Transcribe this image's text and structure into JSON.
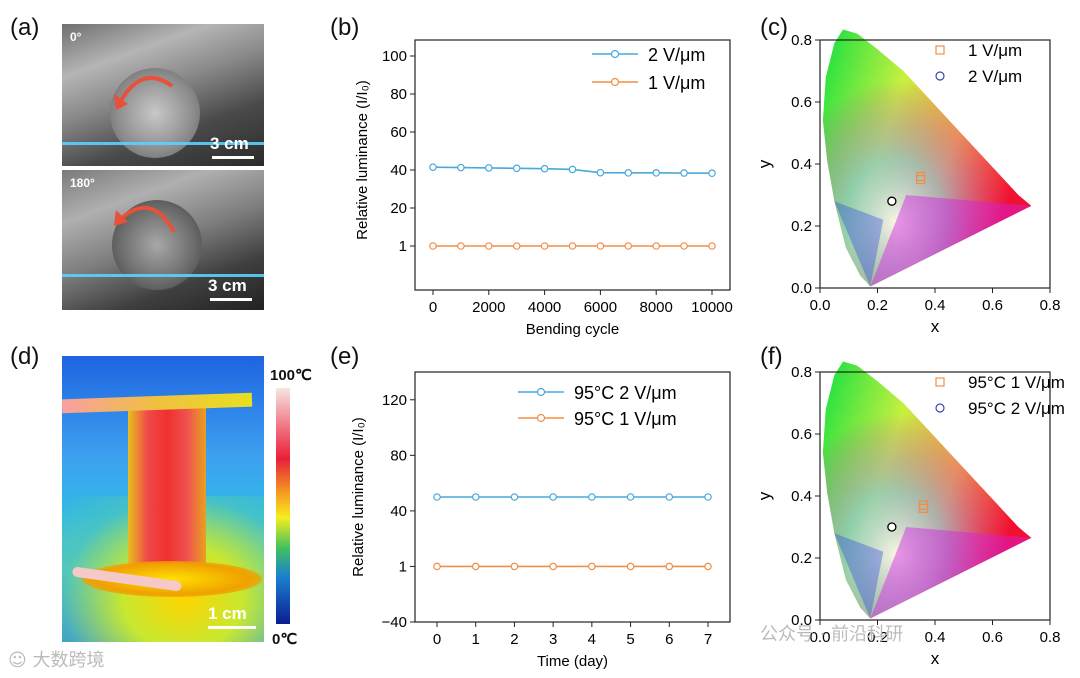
{
  "panels": {
    "a": {
      "label": "(a)",
      "photo1_angle": "0°",
      "photo2_angle": "180°",
      "scale": "3 cm"
    },
    "b": {
      "label": "(b)"
    },
    "c": {
      "label": "(c)"
    },
    "d": {
      "label": "(d)",
      "scale": "1 cm",
      "cbar_max": "100℃",
      "cbar_min": "0℃"
    },
    "e": {
      "label": "(e)"
    },
    "f": {
      "label": "(f)"
    }
  },
  "colors": {
    "blue": "#4aa8dc",
    "orange": "#ef8f45",
    "cie_blue_marker": "#3a43b8",
    "cie_orange_marker": "#ef8f45"
  },
  "chart_data": [
    {
      "id": "b",
      "type": "line",
      "xlabel": "Bending cycle",
      "ylabel": "Relative luminance (I/I₀)",
      "x": [
        0,
        1000,
        2000,
        3000,
        4000,
        5000,
        6000,
        7000,
        8000,
        9000,
        10000
      ],
      "xticks": [
        "0",
        "2000",
        "4000",
        "6000",
        "8000",
        "10000"
      ],
      "yticks": [
        "1",
        "20",
        "40",
        "60",
        "80",
        "100"
      ],
      "series": [
        {
          "name": "2 V/μm",
          "color": "#4aa8dc",
          "values": [
            41.5,
            41.3,
            41.1,
            40.9,
            40.7,
            40.3,
            38.6,
            38.5,
            38.5,
            38.4,
            38.3
          ]
        },
        {
          "name": "1 V/μm",
          "color": "#ef8f45",
          "values": [
            1,
            1,
            1,
            1,
            1,
            1,
            1,
            1,
            1,
            1,
            1
          ]
        }
      ]
    },
    {
      "id": "c",
      "type": "scatter",
      "xlabel": "x",
      "ylabel": "y",
      "xticks": [
        "0.0",
        "0.2",
        "0.4",
        "0.6",
        "0.8"
      ],
      "yticks": [
        "0.0",
        "0.2",
        "0.4",
        "0.6",
        "0.8"
      ],
      "series": [
        {
          "name": "1 V/μm",
          "marker": "square",
          "color": "#ef8f45",
          "points": [
            [
              0.35,
              0.36
            ],
            [
              0.35,
              0.35
            ]
          ]
        },
        {
          "name": "2 V/μm",
          "marker": "circle",
          "color": "#3a43b8",
          "points": [
            [
              0.25,
              0.28
            ]
          ]
        }
      ]
    },
    {
      "id": "e",
      "type": "line",
      "xlabel": "Time (day)",
      "ylabel": "Relative luminance (I/I₀)",
      "x": [
        0,
        1,
        2,
        3,
        4,
        5,
        6,
        7
      ],
      "xticks": [
        "0",
        "1",
        "2",
        "3",
        "4",
        "5",
        "6",
        "7"
      ],
      "yticks": [
        "−40",
        "1",
        "40",
        "80",
        "120"
      ],
      "series": [
        {
          "name": "95°C 2 V/μm",
          "color": "#4aa8dc",
          "values": [
            50,
            50,
            50,
            50,
            50,
            50,
            50,
            50
          ]
        },
        {
          "name": "95°C 1 V/μm",
          "color": "#ef8f45",
          "values": [
            1,
            1,
            1,
            1,
            1,
            1,
            1,
            1
          ]
        }
      ]
    },
    {
      "id": "f",
      "type": "scatter",
      "xlabel": "x",
      "ylabel": "y",
      "xticks": [
        "0.0",
        "0.2",
        "0.4",
        "0.6",
        "0.8"
      ],
      "yticks": [
        "0.0",
        "0.2",
        "0.4",
        "0.6",
        "0.8"
      ],
      "series": [
        {
          "name": "95°C 1 V/μm",
          "marker": "square",
          "color": "#ef8f45",
          "points": [
            [
              0.36,
              0.37
            ],
            [
              0.36,
              0.36
            ]
          ]
        },
        {
          "name": "95°C 2 V/μm",
          "marker": "circle",
          "color": "#3a43b8",
          "points": [
            [
              0.25,
              0.3
            ]
          ]
        }
      ]
    }
  ],
  "watermark": {
    "left": "☺ 大数跨境",
    "right": "公众号 · 前沿科研"
  }
}
